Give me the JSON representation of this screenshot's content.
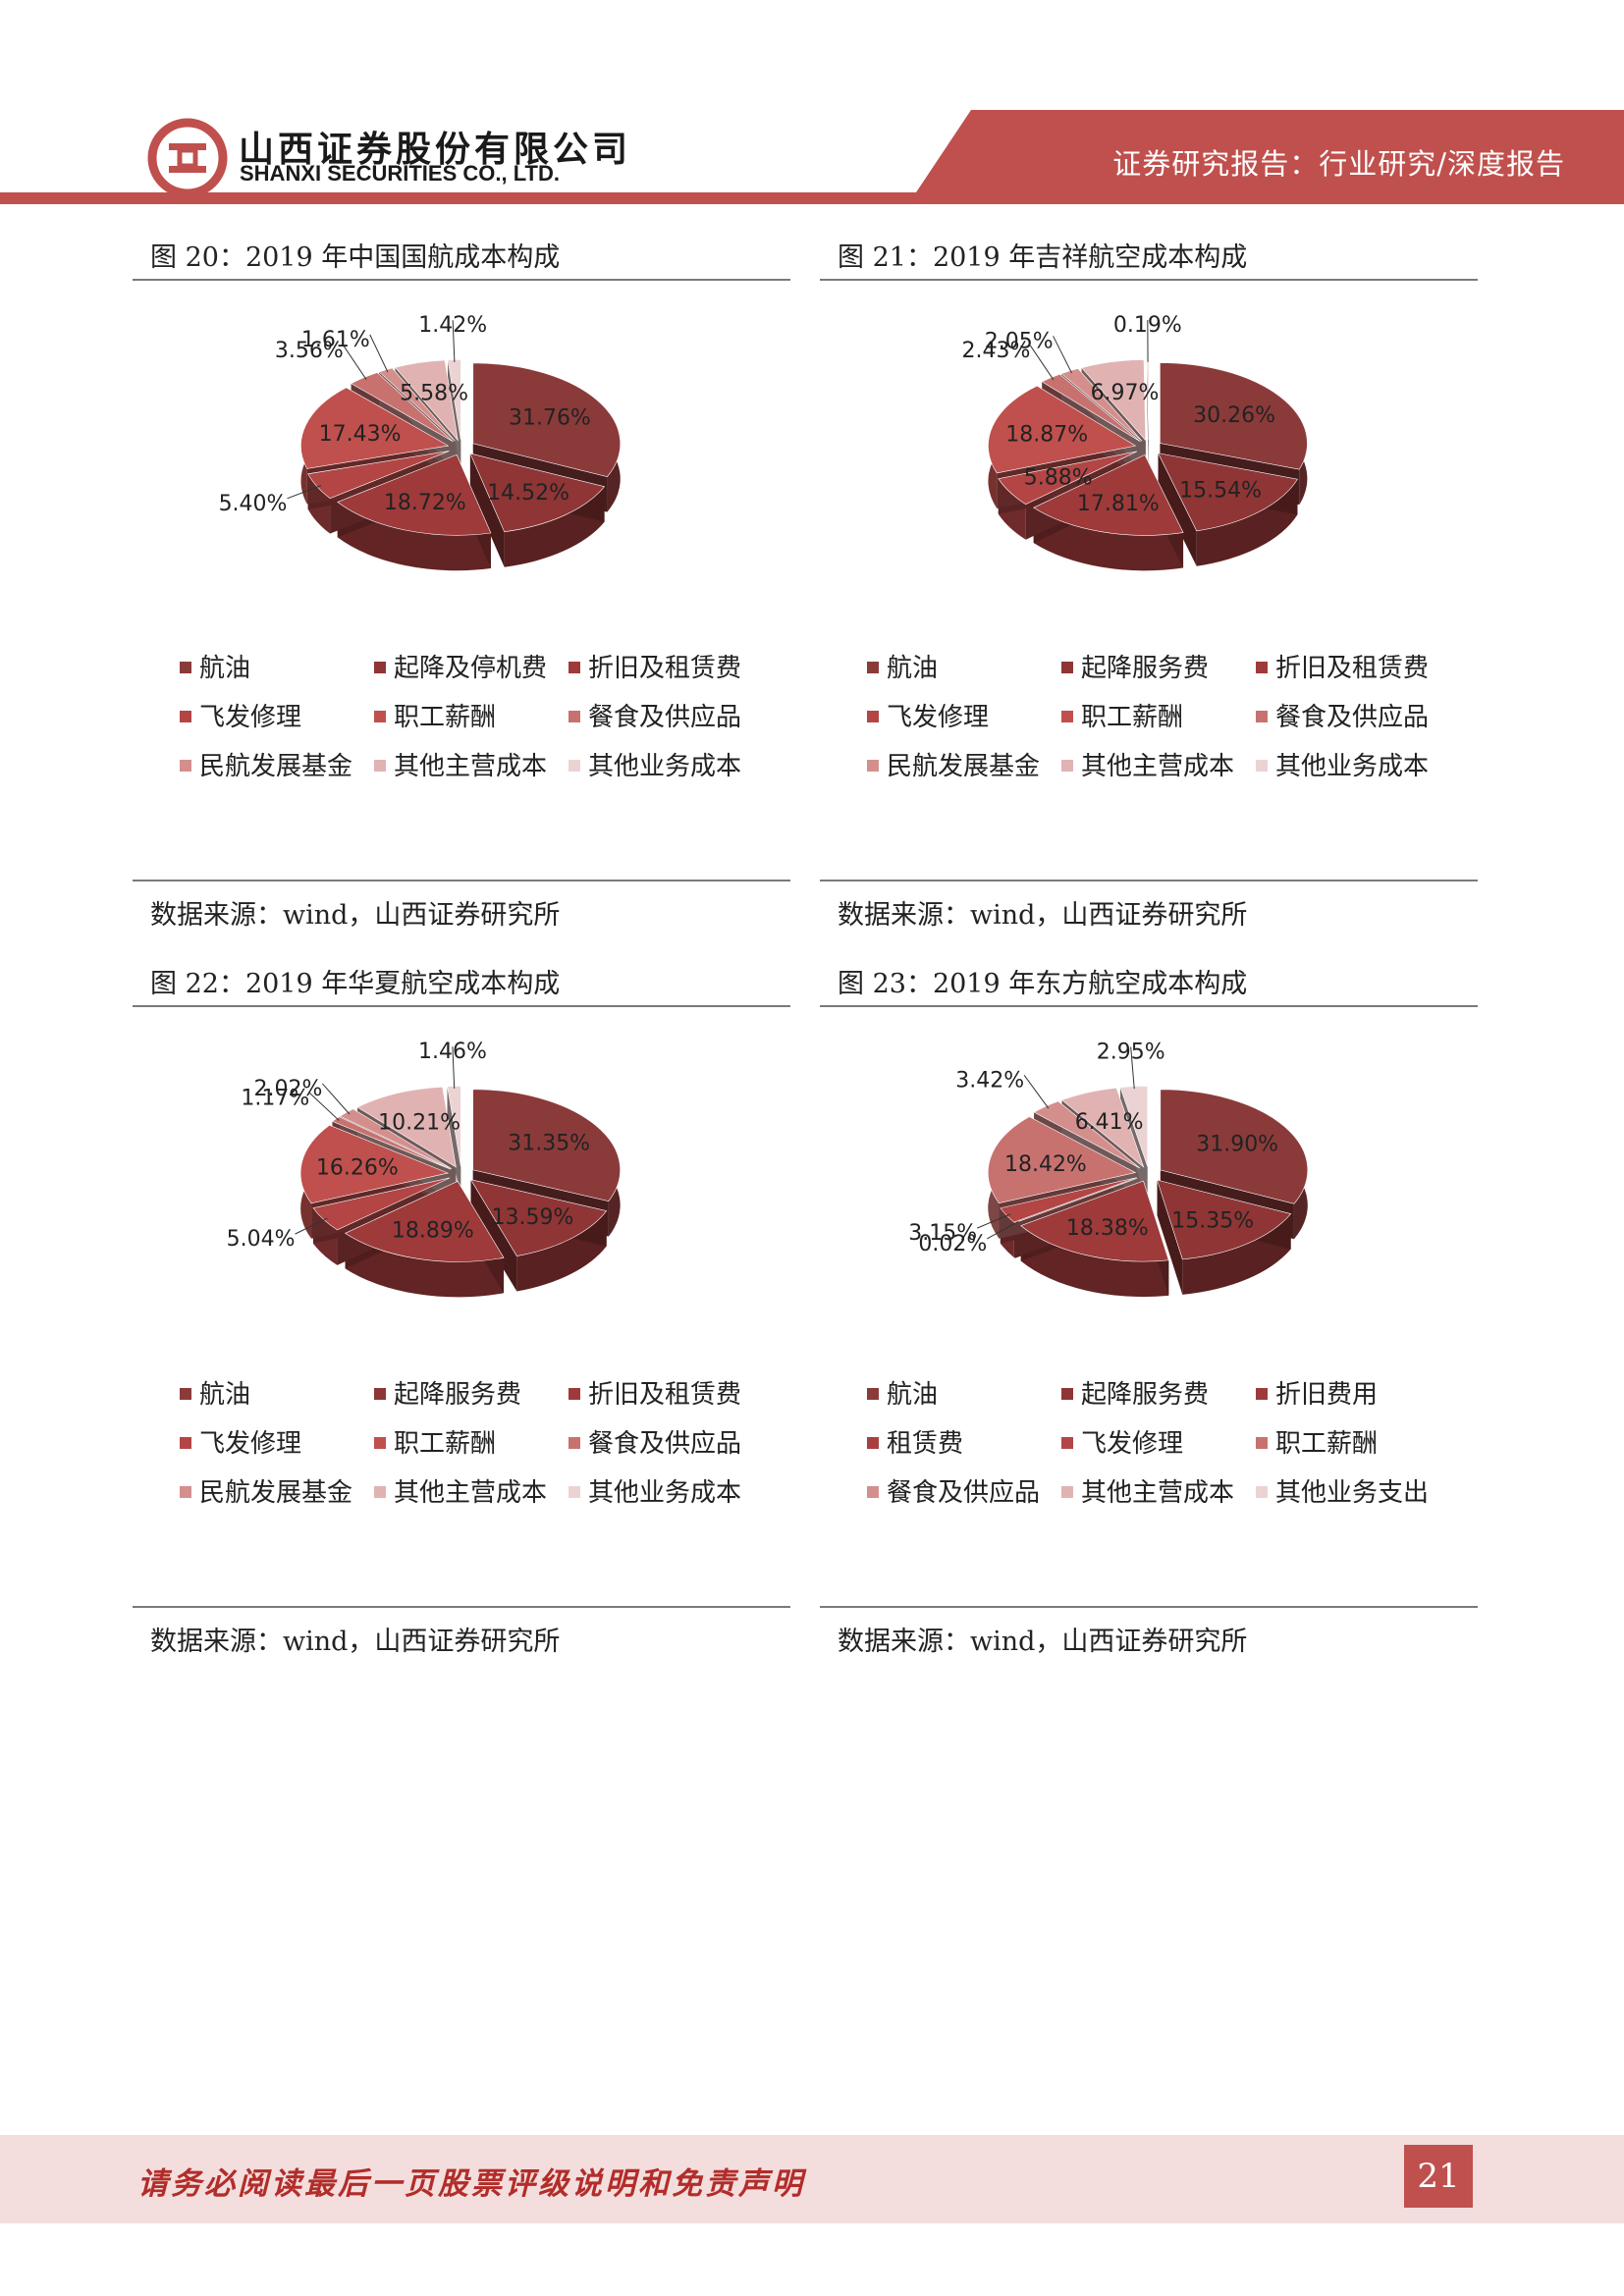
{
  "header": {
    "company_cn": "山西证券股份有限公司",
    "company_en": "SHANXI SECURITIES CO., LTD.",
    "report_type": "证券研究报告：行业研究/深度报告",
    "colors": {
      "brand": "#c0504d"
    }
  },
  "figures": [
    {
      "title": "图 20：2019 年中国国航成本构成",
      "source": "数据来源：wind，山西证券研究所",
      "legend": [
        "航油",
        "起降及停机费",
        "折旧及租赁费",
        "飞发修理",
        "职工薪酬",
        "餐食及供应品",
        "民航发展基金",
        "其他主营成本",
        "其他业务成本"
      ],
      "labels": [
        "31.76%",
        "14.52%",
        "18.72%",
        "5.40%",
        "17.43%",
        "3.56%",
        "1.61%",
        "5.58%",
        "1.42%"
      ]
    },
    {
      "title": "图 21：2019 年吉祥航空成本构成",
      "source": "数据来源：wind，山西证券研究所",
      "legend": [
        "航油",
        "起降服务费",
        "折旧及租赁费",
        "飞发修理",
        "职工薪酬",
        "餐食及供应品",
        "民航发展基金",
        "其他主营成本",
        "其他业务成本"
      ],
      "labels": [
        "30.26%",
        "15.54%",
        "17.81%",
        "5.88%",
        "18.87%",
        "2.43%",
        "2.05%",
        "6.97%",
        "0.19%"
      ]
    },
    {
      "title": "图 22：2019 年华夏航空成本构成",
      "source": "数据来源：wind，山西证券研究所",
      "legend": [
        "航油",
        "起降服务费",
        "折旧及租赁费",
        "飞发修理",
        "职工薪酬",
        "餐食及供应品",
        "民航发展基金",
        "其他主营成本",
        "其他业务成本"
      ],
      "labels": [
        "31.35%",
        "13.59%",
        "18.89%",
        "5.04%",
        "16.26%",
        "1.17%",
        "2.02%",
        "10.21%",
        "1.46%"
      ]
    },
    {
      "title": "图 23：2019 年东方航空成本构成",
      "source": "数据来源：wind，山西证券研究所",
      "legend": [
        "航油",
        "起降服务费",
        "折旧费用",
        "租赁费",
        "飞发修理",
        "职工薪酬",
        "餐食及供应品",
        "其他主营成本",
        "其他业务支出"
      ],
      "labels": [
        "31.90%",
        "15.35%",
        "18.38%",
        "0.02%",
        "3.15%",
        "18.42%",
        "3.42%",
        "6.41%",
        "2.95%"
      ]
    }
  ],
  "chart_data": [
    {
      "type": "pie",
      "title": "图 20：2019 年中国国航成本构成",
      "categories": [
        "航油",
        "起降及停机费",
        "折旧及租赁费",
        "飞发修理",
        "职工薪酬",
        "餐食及供应品",
        "民航发展基金",
        "其他主营成本",
        "其他业务成本"
      ],
      "values": [
        31.76,
        14.52,
        18.72,
        5.4,
        17.43,
        3.56,
        1.61,
        5.58,
        1.42
      ],
      "colors": [
        "#8b3a3a",
        "#8f3535",
        "#9e3a3a",
        "#b34545",
        "#c0504d",
        "#c87270",
        "#d48f8d",
        "#e0b3b2",
        "#ecd3d3"
      ],
      "legend_position": "bottom"
    },
    {
      "type": "pie",
      "title": "图 21：2019 年吉祥航空成本构成",
      "categories": [
        "航油",
        "起降服务费",
        "折旧及租赁费",
        "飞发修理",
        "职工薪酬",
        "餐食及供应品",
        "民航发展基金",
        "其他主营成本",
        "其他业务成本"
      ],
      "values": [
        30.26,
        15.54,
        17.81,
        5.88,
        18.87,
        2.43,
        2.05,
        6.97,
        0.19
      ],
      "colors": [
        "#8b3a3a",
        "#8f3535",
        "#9e3a3a",
        "#b34545",
        "#c0504d",
        "#c87270",
        "#d48f8d",
        "#e0b3b2",
        "#ecd3d3"
      ],
      "legend_position": "bottom"
    },
    {
      "type": "pie",
      "title": "图 22：2019 年华夏航空成本构成",
      "categories": [
        "航油",
        "起降服务费",
        "折旧及租赁费",
        "飞发修理",
        "职工薪酬",
        "餐食及供应品",
        "民航发展基金",
        "其他主营成本",
        "其他业务成本"
      ],
      "values": [
        31.35,
        13.59,
        18.89,
        5.04,
        16.26,
        1.17,
        2.02,
        10.21,
        1.46
      ],
      "colors": [
        "#8b3a3a",
        "#8f3535",
        "#9e3a3a",
        "#b34545",
        "#c0504d",
        "#c87270",
        "#d48f8d",
        "#e0b3b2",
        "#ecd3d3"
      ],
      "legend_position": "bottom"
    },
    {
      "type": "pie",
      "title": "图 23：2019 年东方航空成本构成",
      "categories": [
        "航油",
        "起降服务费",
        "折旧费用",
        "租赁费",
        "飞发修理",
        "职工薪酬",
        "餐食及供应品",
        "其他主营成本",
        "其他业务支出"
      ],
      "values": [
        31.9,
        15.35,
        18.38,
        0.02,
        3.15,
        18.42,
        3.42,
        6.41,
        2.95
      ],
      "colors": [
        "#8b3a3a",
        "#8f3535",
        "#9e3a3a",
        "#a84040",
        "#b34545",
        "#c87270",
        "#d48f8d",
        "#e0b3b2",
        "#ecd3d3"
      ],
      "legend_position": "bottom"
    }
  ],
  "footer": {
    "disclaimer": "请务必阅读最后一页股票评级说明和免责声明",
    "page_number": "21"
  }
}
